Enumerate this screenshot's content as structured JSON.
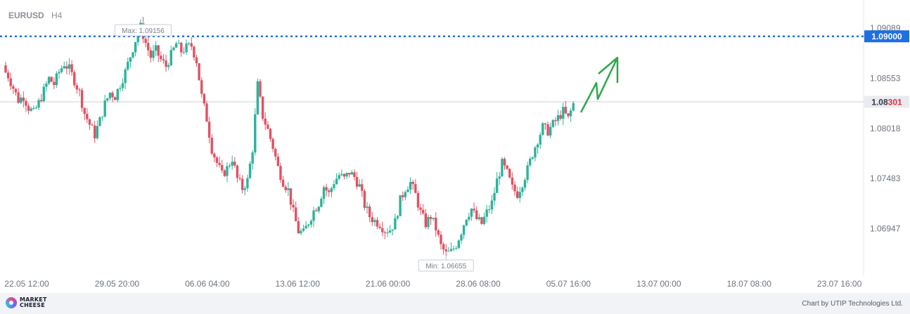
{
  "symbol": "EURUSD",
  "timeframe": "H4",
  "footer": {
    "logo_line1": "MARKET",
    "logo_line2": "CHEESE",
    "credit": "Chart by UTIP Technologies Ltd."
  },
  "chart_data": {
    "type": "candlestick",
    "title": "EURUSD",
    "subtitle": "H4",
    "y_ticks": [
      "1.09089",
      "1.08553",
      "1.08018",
      "1.07483",
      "1.06947"
    ],
    "ylim": [
      1.0645,
      1.0935
    ],
    "x_ticks": [
      "22.05 12:00",
      "29.05 20:00",
      "06.06 04:00",
      "13.06 12:00",
      "21.06 00:00",
      "28.06 08:00",
      "05.07 16:00",
      "13.07 00:00",
      "18.07 08:00",
      "23.07 16:00"
    ],
    "grid": false,
    "colors": {
      "up": "#2bb39b",
      "down": "#e05262",
      "level": "#1f6fe0",
      "arrow": "#2ea84a",
      "current": "#cccccc"
    },
    "price_path": [
      1.0865,
      1.0858,
      1.0845,
      1.0832,
      1.0836,
      1.0824,
      1.0818,
      1.0829,
      1.0842,
      1.0855,
      1.0849,
      1.0862,
      1.0871,
      1.0865,
      1.0853,
      1.084,
      1.0818,
      1.0806,
      1.0795,
      1.081,
      1.0828,
      1.084,
      1.0836,
      1.0849,
      1.0862,
      1.0879,
      1.0896,
      1.091,
      1.0893,
      1.0878,
      1.0885,
      1.0875,
      1.0868,
      1.088,
      1.0892,
      1.0884,
      1.0888,
      1.089,
      1.0874,
      1.0836,
      1.0812,
      1.078,
      1.0765,
      1.0752,
      1.0759,
      1.077,
      1.0748,
      1.0738,
      1.0746,
      1.078,
      1.0848,
      1.0815,
      1.08,
      1.0782,
      1.076,
      1.0745,
      1.0736,
      1.0712,
      1.0692,
      1.069,
      1.0702,
      1.0714,
      1.0722,
      1.074,
      1.0732,
      1.0745,
      1.0752,
      1.0748,
      1.0755,
      1.075,
      1.074,
      1.072,
      1.0708,
      1.0703,
      1.07,
      1.0693,
      1.0694,
      1.0702,
      1.0725,
      1.0738,
      1.0744,
      1.0731,
      1.0712,
      1.07,
      1.0708,
      1.0695,
      1.0676,
      1.0668,
      1.067,
      1.0678,
      1.0692,
      1.0708,
      1.0716,
      1.0705,
      1.07,
      1.0712,
      1.0722,
      1.0746,
      1.0764,
      1.0754,
      1.0738,
      1.0732,
      1.0744,
      1.0758,
      1.0775,
      1.079,
      1.0803,
      1.0799,
      1.0806,
      1.0813,
      1.082,
      1.0812,
      1.0828
    ],
    "max": {
      "label": "Max: 1.09156",
      "value": 1.09156
    },
    "min": {
      "label": "Min: 1.06655",
      "value": 1.06655
    },
    "level": {
      "label": "1.09000",
      "value": 1.09
    },
    "current": {
      "prefix": "1.08",
      "suffix": "301",
      "value": 1.08301
    }
  }
}
